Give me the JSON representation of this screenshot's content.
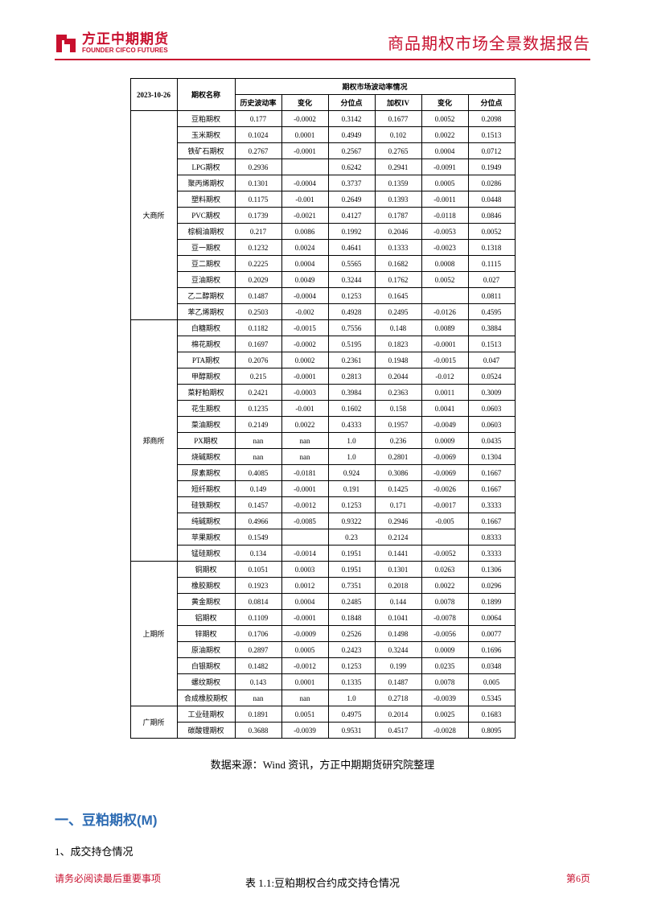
{
  "header": {
    "logo_cn": "方正中期期货",
    "logo_en": "FOUNDER CIFCO FUTURES",
    "report_title": "商品期权市场全景数据报告",
    "logo_color": "#c8102e",
    "rule_color": "#c8102e"
  },
  "table": {
    "date": "2023-10-26",
    "col_date_header": "2023-10-26",
    "col_name_header": "期权名称",
    "group_header": "期权市场波动率情况",
    "columns": [
      "历史波动率",
      "变化",
      "分位点",
      "加权IV",
      "变化",
      "分位点"
    ],
    "border_color": "#000000",
    "font_size": 9,
    "groups": [
      {
        "exchange": "大商所",
        "rows": [
          {
            "name": "豆粕期权",
            "v": [
              "0.177",
              "-0.0002",
              "0.3142",
              "0.1677",
              "0.0052",
              "0.2098"
            ]
          },
          {
            "name": "玉米期权",
            "v": [
              "0.1024",
              "0.0001",
              "0.4949",
              "0.102",
              "0.0022",
              "0.1513"
            ]
          },
          {
            "name": "铁矿石期权",
            "v": [
              "0.2767",
              "-0.0001",
              "0.2567",
              "0.2765",
              "0.0004",
              "0.0712"
            ]
          },
          {
            "name": "LPG期权",
            "v": [
              "0.2936",
              "",
              "0.6242",
              "0.2941",
              "-0.0091",
              "0.1949"
            ]
          },
          {
            "name": "聚丙烯期权",
            "v": [
              "0.1301",
              "-0.0004",
              "0.3737",
              "0.1359",
              "0.0005",
              "0.0286"
            ]
          },
          {
            "name": "塑料期权",
            "v": [
              "0.1175",
              "-0.001",
              "0.2649",
              "0.1393",
              "-0.0011",
              "0.0448"
            ]
          },
          {
            "name": "PVC期权",
            "v": [
              "0.1739",
              "-0.0021",
              "0.4127",
              "0.1787",
              "-0.0118",
              "0.0846"
            ]
          },
          {
            "name": "棕榈油期权",
            "v": [
              "0.217",
              "0.0086",
              "0.1992",
              "0.2046",
              "-0.0053",
              "0.0052"
            ]
          },
          {
            "name": "豆一期权",
            "v": [
              "0.1232",
              "0.0024",
              "0.4641",
              "0.1333",
              "-0.0023",
              "0.1318"
            ]
          },
          {
            "name": "豆二期权",
            "v": [
              "0.2225",
              "0.0004",
              "0.5565",
              "0.1682",
              "0.0008",
              "0.1115"
            ]
          },
          {
            "name": "豆油期权",
            "v": [
              "0.2029",
              "0.0049",
              "0.3244",
              "0.1762",
              "0.0052",
              "0.027"
            ]
          },
          {
            "name": "乙二醇期权",
            "v": [
              "0.1487",
              "-0.0004",
              "0.1253",
              "0.1645",
              "",
              "0.0811"
            ]
          },
          {
            "name": "苯乙烯期权",
            "v": [
              "0.2503",
              "-0.002",
              "0.4928",
              "0.2495",
              "-0.0126",
              "0.4595"
            ]
          }
        ]
      },
      {
        "exchange": "郑商所",
        "rows": [
          {
            "name": "白糖期权",
            "v": [
              "0.1182",
              "-0.0015",
              "0.7556",
              "0.148",
              "0.0089",
              "0.3884"
            ]
          },
          {
            "name": "棉花期权",
            "v": [
              "0.1697",
              "-0.0002",
              "0.5195",
              "0.1823",
              "-0.0001",
              "0.1513"
            ]
          },
          {
            "name": "PTA期权",
            "v": [
              "0.2076",
              "0.0002",
              "0.2361",
              "0.1948",
              "-0.0015",
              "0.047"
            ]
          },
          {
            "name": "甲醇期权",
            "v": [
              "0.215",
              "-0.0001",
              "0.2813",
              "0.2044",
              "-0.012",
              "0.0524"
            ]
          },
          {
            "name": "菜籽粕期权",
            "v": [
              "0.2421",
              "-0.0003",
              "0.3984",
              "0.2363",
              "0.0011",
              "0.3009"
            ]
          },
          {
            "name": "花生期权",
            "v": [
              "0.1235",
              "-0.001",
              "0.1602",
              "0.158",
              "0.0041",
              "0.0603"
            ]
          },
          {
            "name": "菜油期权",
            "v": [
              "0.2149",
              "0.0022",
              "0.4333",
              "0.1957",
              "-0.0049",
              "0.0603"
            ]
          },
          {
            "name": "PX期权",
            "v": [
              "nan",
              "nan",
              "1.0",
              "0.236",
              "0.0009",
              "0.0435"
            ]
          },
          {
            "name": "烧碱期权",
            "v": [
              "nan",
              "nan",
              "1.0",
              "0.2801",
              "-0.0069",
              "0.1304"
            ]
          },
          {
            "name": "尿素期权",
            "v": [
              "0.4085",
              "-0.0181",
              "0.924",
              "0.3086",
              "-0.0069",
              "0.1667"
            ]
          },
          {
            "name": "短纤期权",
            "v": [
              "0.149",
              "-0.0001",
              "0.191",
              "0.1425",
              "-0.0026",
              "0.1667"
            ]
          },
          {
            "name": "硅铁期权",
            "v": [
              "0.1457",
              "-0.0012",
              "0.1253",
              "0.171",
              "-0.0017",
              "0.3333"
            ]
          },
          {
            "name": "纯碱期权",
            "v": [
              "0.4966",
              "-0.0085",
              "0.9322",
              "0.2946",
              "-0.005",
              "0.1667"
            ]
          },
          {
            "name": "苹果期权",
            "v": [
              "0.1549",
              "",
              "0.23",
              "0.2124",
              "",
              "0.8333"
            ]
          },
          {
            "name": "锰硅期权",
            "v": [
              "0.134",
              "-0.0014",
              "0.1951",
              "0.1441",
              "-0.0052",
              "0.3333"
            ]
          }
        ]
      },
      {
        "exchange": "上期所",
        "rows": [
          {
            "name": "铜期权",
            "v": [
              "0.1051",
              "0.0003",
              "0.1951",
              "0.1301",
              "0.0263",
              "0.1306"
            ]
          },
          {
            "name": "橡胶期权",
            "v": [
              "0.1923",
              "0.0012",
              "0.7351",
              "0.2018",
              "0.0022",
              "0.0296"
            ]
          },
          {
            "name": "黄金期权",
            "v": [
              "0.0814",
              "0.0004",
              "0.2485",
              "0.144",
              "0.0078",
              "0.1899"
            ]
          },
          {
            "name": "铝期权",
            "v": [
              "0.1109",
              "-0.0001",
              "0.1848",
              "0.1041",
              "-0.0078",
              "0.0064"
            ]
          },
          {
            "name": "锌期权",
            "v": [
              "0.1706",
              "-0.0009",
              "0.2526",
              "0.1498",
              "-0.0056",
              "0.0077"
            ]
          },
          {
            "name": "原油期权",
            "v": [
              "0.2897",
              "0.0005",
              "0.2423",
              "0.3244",
              "0.0009",
              "0.1696"
            ]
          },
          {
            "name": "白银期权",
            "v": [
              "0.1482",
              "-0.0012",
              "0.1253",
              "0.199",
              "0.0235",
              "0.0348"
            ]
          },
          {
            "name": "螺纹期权",
            "v": [
              "0.143",
              "0.0001",
              "0.1335",
              "0.1487",
              "0.0078",
              "0.005"
            ]
          },
          {
            "name": "合成橡胶期权",
            "v": [
              "nan",
              "nan",
              "1.0",
              "0.2718",
              "-0.0039",
              "0.5345"
            ]
          }
        ]
      },
      {
        "exchange": "广期所",
        "rows": [
          {
            "name": "工业硅期权",
            "v": [
              "0.1891",
              "0.0051",
              "0.4975",
              "0.2014",
              "0.0025",
              "0.1683"
            ]
          },
          {
            "name": "碳酸锂期权",
            "v": [
              "0.3688",
              "-0.0039",
              "0.9531",
              "0.4517",
              "-0.0028",
              "0.8095"
            ]
          }
        ]
      }
    ]
  },
  "source_line": "数据来源：Wind 资讯，方正中期期货研究院整理",
  "section": {
    "heading": "一、豆粕期权(M)",
    "heading_color": "#2e6cb3",
    "sub": "1、成交持仓情况",
    "caption": "表 1.1:豆粕期权合约成交持仓情况"
  },
  "footer": {
    "left": "请务必阅读最后重要事项",
    "right": "第6页",
    "color": "#c8102e"
  }
}
